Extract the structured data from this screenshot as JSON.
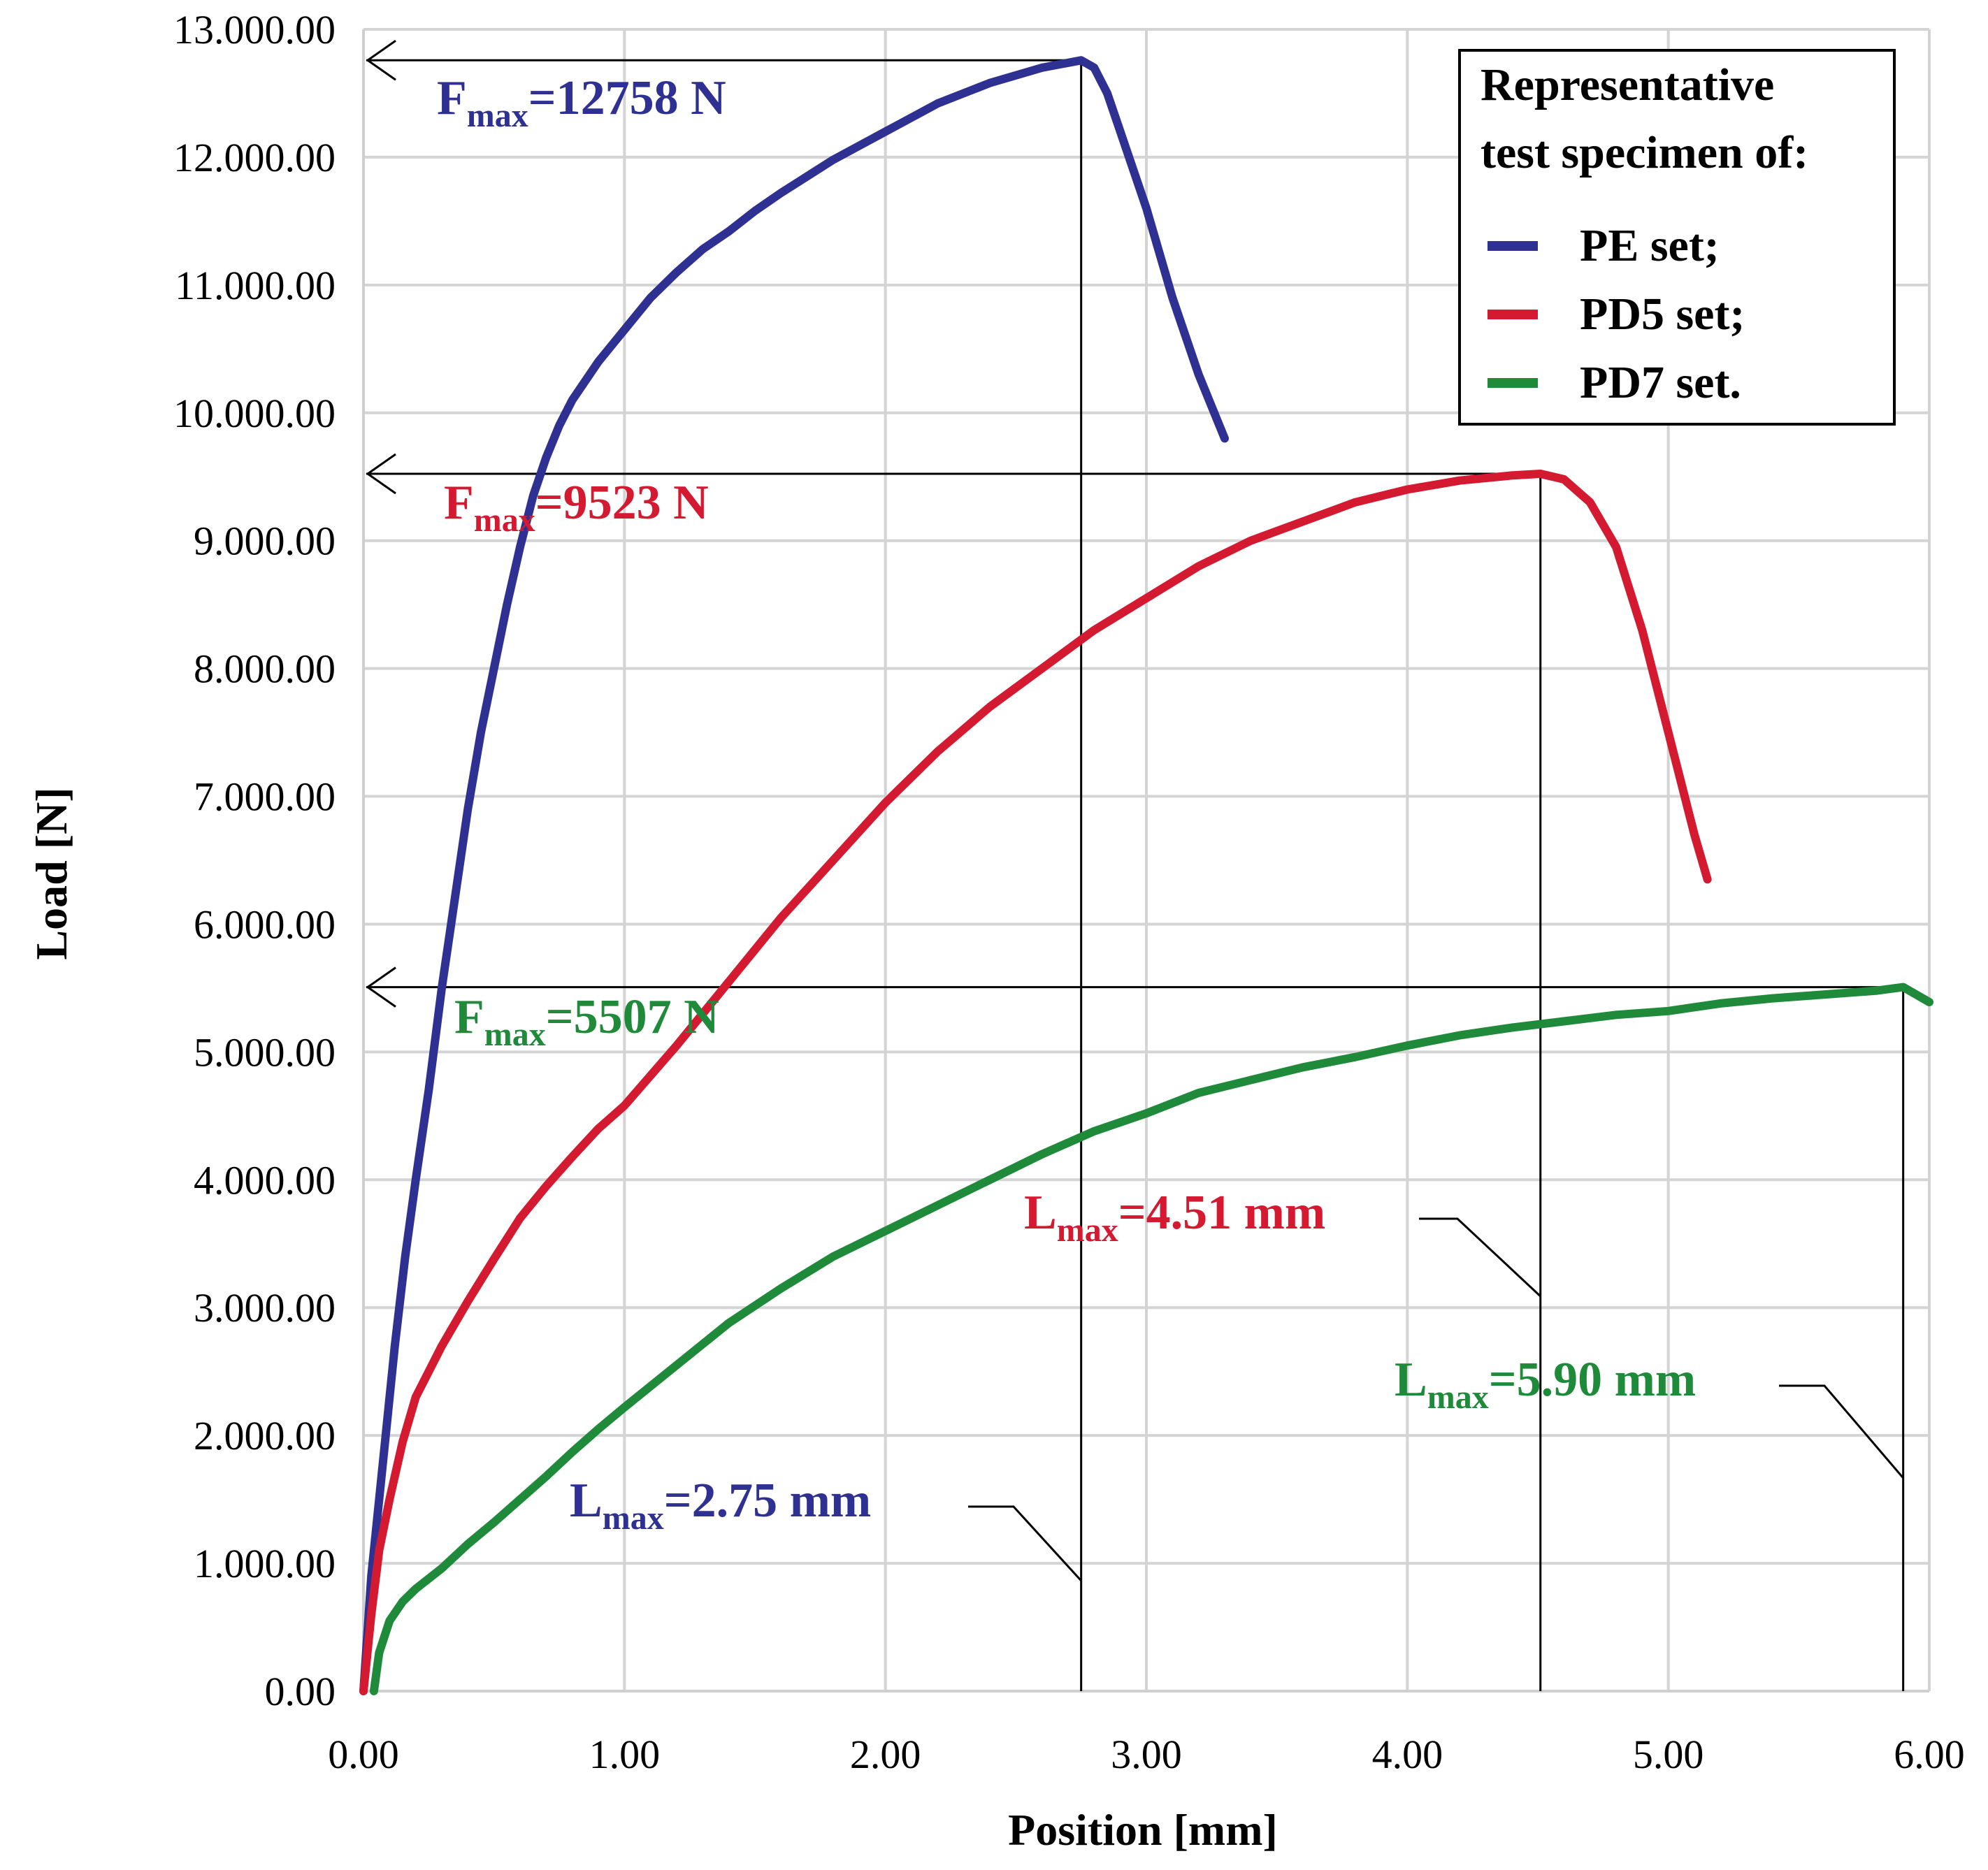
{
  "chart_data": {
    "type": "line",
    "xlabel": "Position  [mm]",
    "ylabel": "Load  [N]",
    "xlim": [
      0,
      6
    ],
    "ylim": [
      0,
      13000
    ],
    "grid": true,
    "x_ticks": [
      "0.00",
      "1.00",
      "2.00",
      "3.00",
      "4.00",
      "5.00",
      "6.00"
    ],
    "y_ticks": [
      "0.00",
      "1.000.00",
      "2.000.00",
      "3.000.00",
      "4.000.00",
      "5.000.00",
      "6.000.00",
      "7.000.00",
      "8.000.00",
      "9.000.00",
      "10.000.00",
      "11.000.00",
      "12.000.00",
      "13.000.00"
    ],
    "legend": {
      "placement": "top-right",
      "title_lines": [
        "Representative",
        "test specimen of:"
      ],
      "entries": [
        "PE set;",
        "PD5 set;",
        "PD7 set."
      ]
    },
    "series": [
      {
        "name": "PE set;",
        "color": "#2e3192",
        "x": [
          0,
          0.03,
          0.08,
          0.12,
          0.16,
          0.2,
          0.25,
          0.3,
          0.35,
          0.4,
          0.45,
          0.5,
          0.55,
          0.6,
          0.65,
          0.7,
          0.75,
          0.8,
          0.9,
          1.0,
          1.1,
          1.2,
          1.3,
          1.4,
          1.5,
          1.6,
          1.8,
          2.0,
          2.2,
          2.4,
          2.6,
          2.75,
          2.8,
          2.85,
          2.9,
          3.0,
          3.1,
          3.2,
          3.3
        ],
        "y": [
          0,
          900,
          1900,
          2700,
          3400,
          4000,
          4700,
          5500,
          6200,
          6900,
          7500,
          8000,
          8500,
          8950,
          9350,
          9650,
          9900,
          10100,
          10400,
          10650,
          10900,
          11100,
          11280,
          11420,
          11580,
          11720,
          11980,
          12200,
          12420,
          12580,
          12700,
          12758,
          12700,
          12500,
          12200,
          11600,
          10900,
          10300,
          9800
        ]
      },
      {
        "name": "PD5 set;",
        "color": "#d41a30",
        "x": [
          0,
          0.03,
          0.06,
          0.1,
          0.15,
          0.2,
          0.3,
          0.4,
          0.5,
          0.6,
          0.7,
          0.8,
          0.9,
          1.0,
          1.2,
          1.4,
          1.6,
          1.8,
          2.0,
          2.2,
          2.4,
          2.6,
          2.8,
          3.0,
          3.2,
          3.4,
          3.6,
          3.8,
          4.0,
          4.2,
          4.4,
          4.51,
          4.6,
          4.7,
          4.8,
          4.9,
          5.0,
          5.1,
          5.15
        ],
        "y": [
          0,
          600,
          1100,
          1500,
          1950,
          2300,
          2700,
          3050,
          3380,
          3700,
          3950,
          4180,
          4400,
          4580,
          5050,
          5550,
          6050,
          6500,
          6950,
          7350,
          7700,
          8000,
          8300,
          8550,
          8800,
          9000,
          9150,
          9300,
          9400,
          9470,
          9510,
          9523,
          9480,
          9300,
          8950,
          8300,
          7500,
          6700,
          6350
        ]
      },
      {
        "name": "PD7 set.",
        "color": "#1f8a3a",
        "x": [
          0.04,
          0.06,
          0.1,
          0.15,
          0.2,
          0.3,
          0.4,
          0.5,
          0.6,
          0.7,
          0.8,
          0.9,
          1.0,
          1.2,
          1.4,
          1.6,
          1.8,
          2.0,
          2.2,
          2.4,
          2.6,
          2.8,
          3.0,
          3.2,
          3.4,
          3.6,
          3.8,
          4.0,
          4.2,
          4.4,
          4.6,
          4.8,
          5.0,
          5.2,
          5.4,
          5.6,
          5.8,
          5.9,
          6.0
        ],
        "y": [
          0,
          300,
          550,
          700,
          800,
          960,
          1150,
          1320,
          1500,
          1680,
          1870,
          2050,
          2220,
          2550,
          2880,
          3150,
          3400,
          3600,
          3800,
          4000,
          4200,
          4380,
          4520,
          4680,
          4780,
          4880,
          4960,
          5050,
          5130,
          5190,
          5240,
          5290,
          5320,
          5380,
          5420,
          5450,
          5480,
          5507,
          5390
        ]
      }
    ],
    "annotations": {
      "fmax": [
        {
          "label": "F",
          "sub": "max",
          "value": "=12758 N",
          "color": "#2e3192",
          "x": 2.75,
          "y": 12758
        },
        {
          "label": "F",
          "sub": "max",
          "value": "=9523 N",
          "color": "#d41a30",
          "x": 4.51,
          "y": 9523
        },
        {
          "label": "F",
          "sub": "max",
          "value": "=5507 N",
          "color": "#1f8a3a",
          "x": 5.9,
          "y": 5507
        }
      ],
      "lmax": [
        {
          "label": "L",
          "sub": "max",
          "value": "=2.75 mm",
          "color": "#2e3192",
          "x": 2.75
        },
        {
          "label": "L",
          "sub": "max",
          "value": "=4.51 mm",
          "color": "#d41a30",
          "x": 4.51
        },
        {
          "label": "L",
          "sub": "max",
          "value": "=5.90 mm",
          "color": "#1f8a3a",
          "x": 5.9
        }
      ]
    }
  }
}
